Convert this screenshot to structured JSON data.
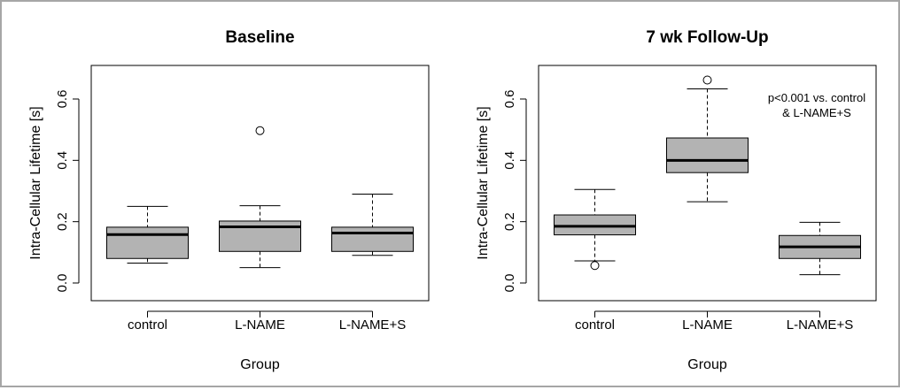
{
  "chart_data": [
    {
      "type": "boxplot",
      "title": "Baseline",
      "xlabel": "Group",
      "ylabel": "Intra-Cellular Lifetime [s]",
      "ylim": [
        0,
        0.65
      ],
      "yticks": [
        "0.0",
        "0.2",
        "0.4",
        "0.6"
      ],
      "categories": [
        "control",
        "L-NAME",
        "L-NAME+S"
      ],
      "boxes": [
        {
          "whisker_low": 0.065,
          "q1": 0.08,
          "median": 0.158,
          "q3": 0.182,
          "whisker_high": 0.25,
          "outliers": []
        },
        {
          "whisker_low": 0.05,
          "q1": 0.103,
          "median": 0.183,
          "q3": 0.202,
          "whisker_high": 0.252,
          "outliers": [
            0.497
          ]
        },
        {
          "whisker_low": 0.09,
          "q1": 0.103,
          "median": 0.163,
          "q3": 0.182,
          "whisker_high": 0.29,
          "outliers": []
        }
      ],
      "annotation": []
    },
    {
      "type": "boxplot",
      "title": "7 wk Follow-Up",
      "xlabel": "Group",
      "ylabel": "Intra-Cellular Lifetime [s]",
      "ylim": [
        0,
        0.65
      ],
      "yticks": [
        "0.0",
        "0.2",
        "0.4",
        "0.6"
      ],
      "categories": [
        "control",
        "L-NAME",
        "L-NAME+S"
      ],
      "boxes": [
        {
          "whisker_low": 0.072,
          "q1": 0.157,
          "median": 0.185,
          "q3": 0.222,
          "whisker_high": 0.305,
          "outliers": [
            0.057
          ]
        },
        {
          "whisker_low": 0.265,
          "q1": 0.36,
          "median": 0.4,
          "q3": 0.473,
          "whisker_high": 0.633,
          "outliers": [
            0.662
          ]
        },
        {
          "whisker_low": 0.027,
          "q1": 0.08,
          "median": 0.118,
          "q3": 0.155,
          "whisker_high": 0.198,
          "outliers": []
        }
      ],
      "annotation": [
        "p<0.001 vs. control",
        "& L-NAME+S"
      ]
    }
  ],
  "colors": {
    "box_fill": "#b3b3b3",
    "stroke": "#000000",
    "frame": "#a6a6a6"
  }
}
